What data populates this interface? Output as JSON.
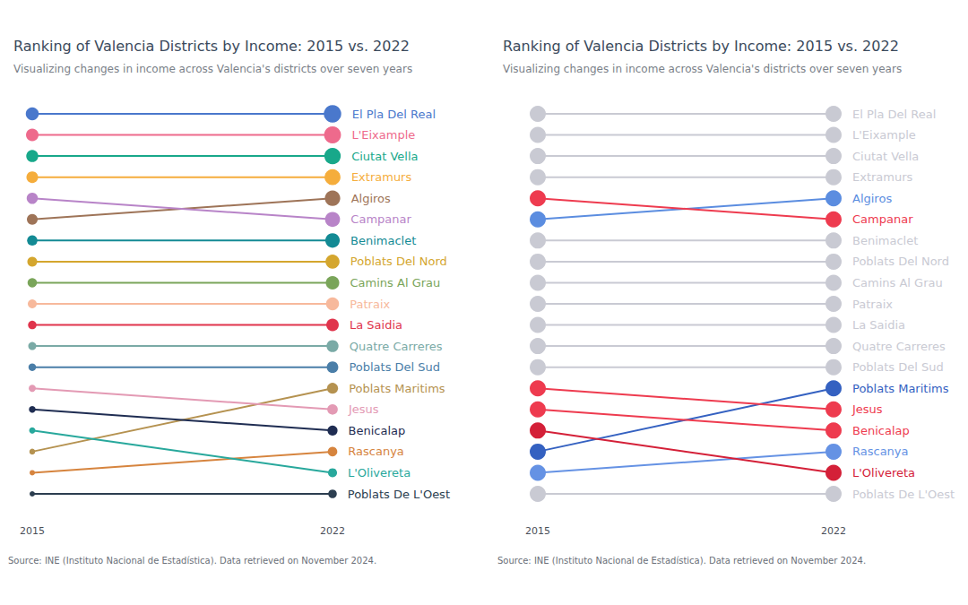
{
  "chart_data": [
    {
      "type": "line",
      "title": "Ranking of Valencia Districts by Income: 2015 vs. 2022",
      "subtitle": "Visualizing changes in income across Valencia's districts over seven years",
      "caption": "Source: INE (Instituto Nacional de Estadística). Data retrieved on November 2024.",
      "categories": [
        "2015",
        "2022"
      ],
      "ylim": [
        19,
        1
      ],
      "tick_labels": "x",
      "grid": false,
      "marker": "circle",
      "series": [
        {
          "name": "El Pla Del Real",
          "color": "#4a78cc",
          "values": [
            1,
            1
          ]
        },
        {
          "name": "L'Eixample",
          "color": "#ee6a8c",
          "values": [
            2,
            2
          ]
        },
        {
          "name": "Ciutat Vella",
          "color": "#18a88a",
          "values": [
            3,
            3
          ]
        },
        {
          "name": "Extramurs",
          "color": "#f5ad3c",
          "values": [
            4,
            4
          ]
        },
        {
          "name": "Algiros",
          "color": "#9e7458",
          "values": [
            6,
            5
          ]
        },
        {
          "name": "Campanar",
          "color": "#b884c8",
          "values": [
            5,
            6
          ]
        },
        {
          "name": "Benimaclet",
          "color": "#138a94",
          "values": [
            7,
            7
          ]
        },
        {
          "name": "Poblats Del Nord",
          "color": "#d4a62e",
          "values": [
            8,
            8
          ]
        },
        {
          "name": "Camins Al Grau",
          "color": "#7aa55a",
          "values": [
            9,
            9
          ]
        },
        {
          "name": "Patraix",
          "color": "#f7b99c",
          "values": [
            10,
            10
          ]
        },
        {
          "name": "La Saidia",
          "color": "#e0344c",
          "values": [
            11,
            11
          ]
        },
        {
          "name": "Quatre Carreres",
          "color": "#7aaaa6",
          "values": [
            12,
            12
          ]
        },
        {
          "name": "Poblats Del Sud",
          "color": "#4a7ea8",
          "values": [
            13,
            13
          ]
        },
        {
          "name": "Poblats Maritims",
          "color": "#b59250",
          "values": [
            17,
            14
          ]
        },
        {
          "name": "Jesus",
          "color": "#e39ab4",
          "values": [
            14,
            15
          ]
        },
        {
          "name": "Benicalap",
          "color": "#1f2d52",
          "values": [
            15,
            16
          ]
        },
        {
          "name": "Rascanya",
          "color": "#d6843e",
          "values": [
            18,
            17
          ]
        },
        {
          "name": "L'Olivereta",
          "color": "#28a89c",
          "values": [
            16,
            18
          ]
        },
        {
          "name": "Poblats De L'Oest",
          "color": "#2c3e50",
          "values": [
            19,
            19
          ]
        }
      ]
    },
    {
      "type": "line",
      "title": "Ranking of Valencia Districts by Income: 2015 vs. 2022",
      "subtitle": "Visualizing changes in income across Valencia's districts over seven years",
      "caption": "Source: INE (Instituto Nacional de Estadística). Data retrieved on November 2024.",
      "categories": [
        "2015",
        "2022"
      ],
      "ylim": [
        19,
        1
      ],
      "tick_labels": "x",
      "grid": false,
      "marker": "circle",
      "series": [
        {
          "name": "El Pla Del Real",
          "color": "#c9cad3",
          "values": [
            1,
            1
          ]
        },
        {
          "name": "L'Eixample",
          "color": "#c9cad3",
          "values": [
            2,
            2
          ]
        },
        {
          "name": "Ciutat Vella",
          "color": "#c9cad3",
          "values": [
            3,
            3
          ]
        },
        {
          "name": "Extramurs",
          "color": "#c9cad3",
          "values": [
            4,
            4
          ]
        },
        {
          "name": "Algiros",
          "color": "#5b8de0",
          "values": [
            6,
            5
          ]
        },
        {
          "name": "Campanar",
          "color": "#ee3b4f",
          "values": [
            5,
            6
          ]
        },
        {
          "name": "Benimaclet",
          "color": "#c9cad3",
          "values": [
            7,
            7
          ]
        },
        {
          "name": "Poblats Del Nord",
          "color": "#c9cad3",
          "values": [
            8,
            8
          ]
        },
        {
          "name": "Camins Al Grau",
          "color": "#c9cad3",
          "values": [
            9,
            9
          ]
        },
        {
          "name": "Patraix",
          "color": "#c9cad3",
          "values": [
            10,
            10
          ]
        },
        {
          "name": "La Saidia",
          "color": "#c9cad3",
          "values": [
            11,
            11
          ]
        },
        {
          "name": "Quatre Carreres",
          "color": "#c9cad3",
          "values": [
            12,
            12
          ]
        },
        {
          "name": "Poblats Del Sud",
          "color": "#c9cad3",
          "values": [
            13,
            13
          ]
        },
        {
          "name": "Poblats Maritims",
          "color": "#3461c1",
          "values": [
            17,
            14
          ]
        },
        {
          "name": "Jesus",
          "color": "#ee3b4f",
          "values": [
            14,
            15
          ]
        },
        {
          "name": "Benicalap",
          "color": "#ee3b4f",
          "values": [
            15,
            16
          ]
        },
        {
          "name": "Rascanya",
          "color": "#6592e4",
          "values": [
            18,
            17
          ]
        },
        {
          "name": "L'Olivereta",
          "color": "#d42038",
          "values": [
            16,
            18
          ]
        },
        {
          "name": "Poblats De L'Oest",
          "color": "#c9cad3",
          "values": [
            19,
            19
          ]
        }
      ]
    }
  ]
}
